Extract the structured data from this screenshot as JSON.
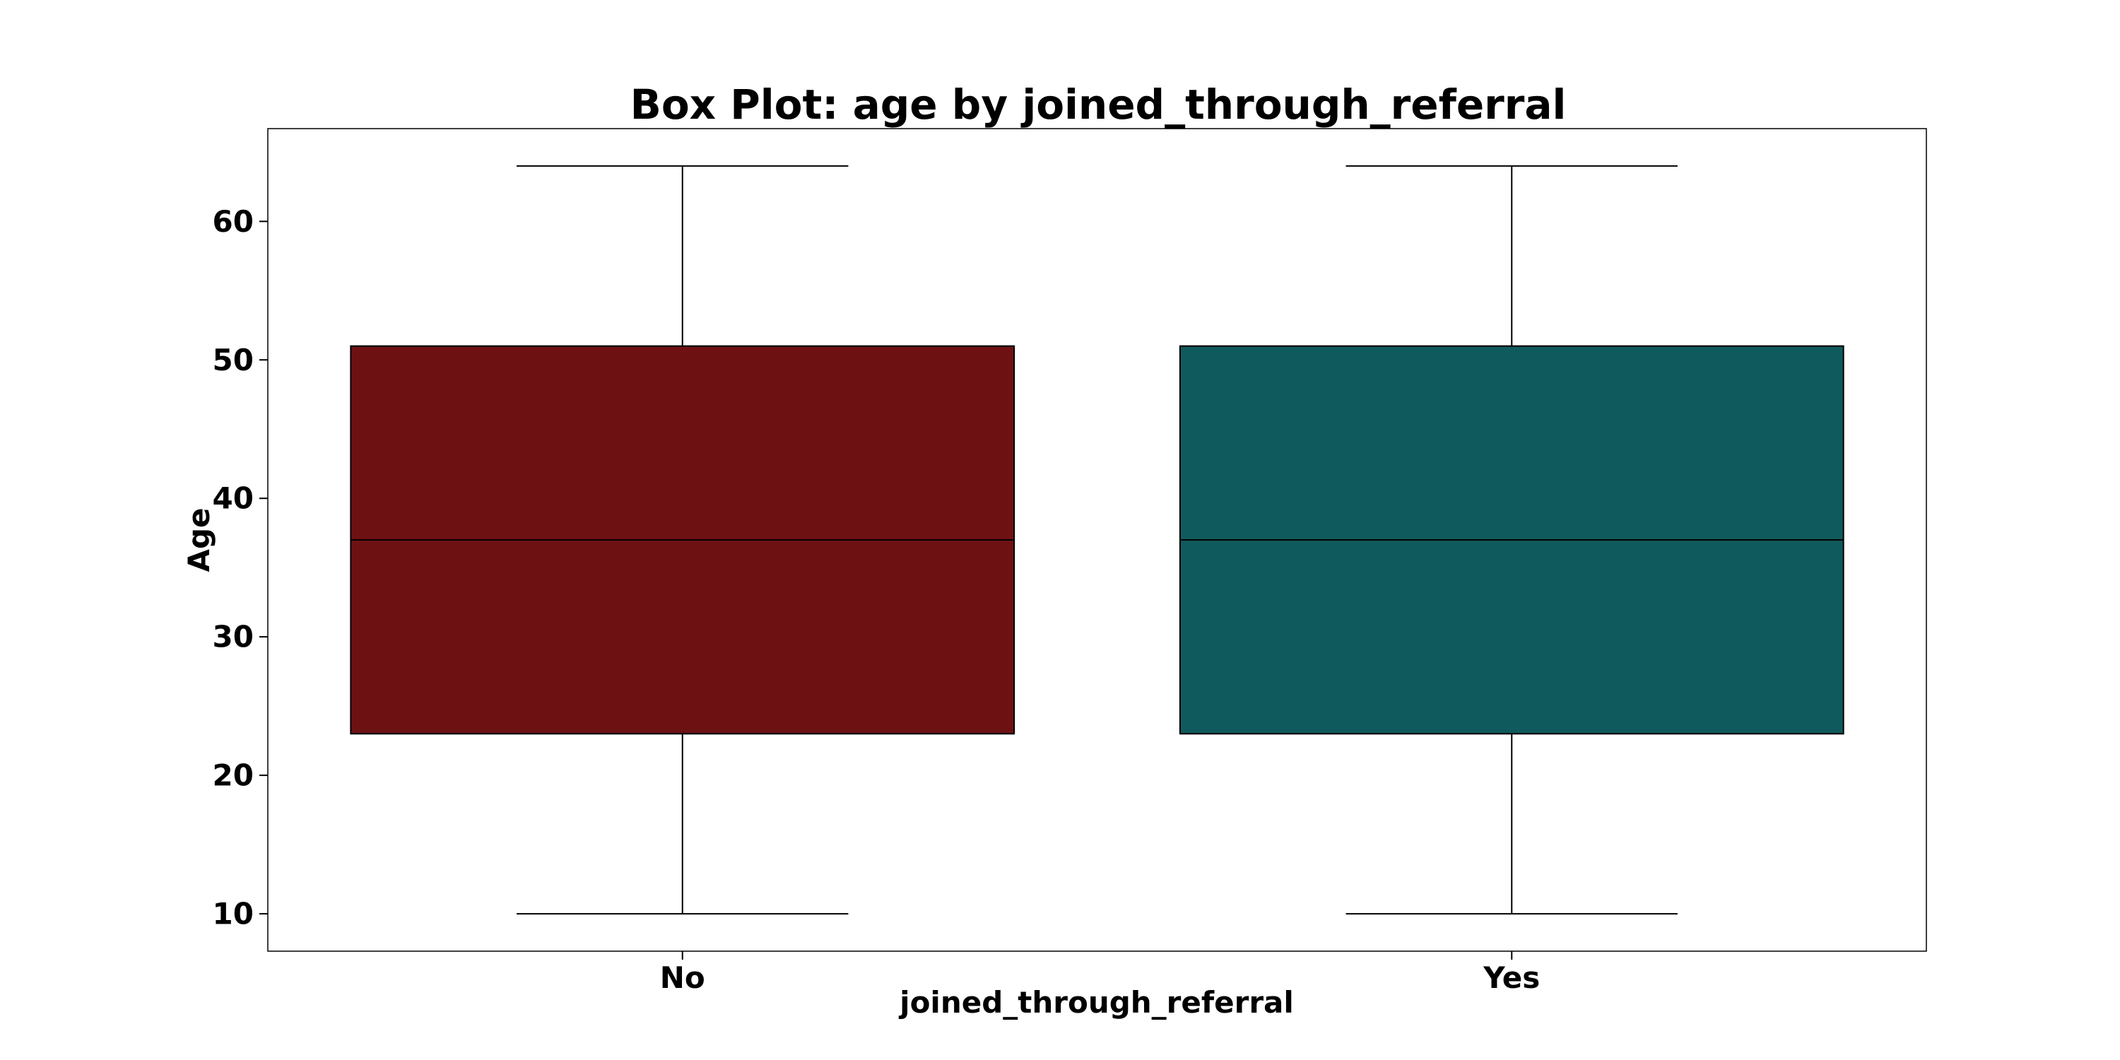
{
  "chart_data": {
    "type": "box",
    "title": "Box Plot: age by joined_through_referral",
    "xlabel": "joined_through_referral",
    "ylabel": "Age",
    "categories": [
      "No",
      "Yes"
    ],
    "boxes": [
      {
        "category": "No",
        "whisker_low": 10,
        "q1": 23,
        "median": 37,
        "q3": 51,
        "whisker_high": 64,
        "color": "#6e1113"
      },
      {
        "category": "Yes",
        "whisker_low": 10,
        "q1": 23,
        "median": 37,
        "q3": 51,
        "whisker_high": 64,
        "color": "#0f5a5c"
      }
    ],
    "yticks": [
      10,
      20,
      30,
      40,
      50,
      60
    ],
    "ylim": [
      7.3,
      66.7
    ],
    "grid": false,
    "legend": "none"
  }
}
